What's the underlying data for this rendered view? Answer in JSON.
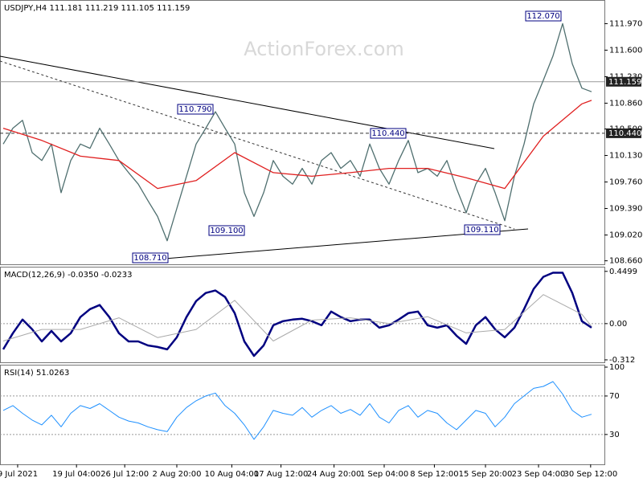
{
  "chart_data": [
    {
      "type": "line",
      "title": "USDJPY,H4  111.181 111.219 111.105 111.159",
      "watermark": "ActionForex.com",
      "xlim": [
        -0.33,
        62.33
      ],
      "ylim": [
        108.6,
        112.3
      ],
      "yticks": [
        {
          "value": 108.66,
          "label": "108.660"
        },
        {
          "value": 109.02,
          "label": "109.020"
        },
        {
          "value": 109.39,
          "label": "109.390"
        },
        {
          "value": 109.76,
          "label": "109.760"
        },
        {
          "value": 110.13,
          "label": "110.130"
        },
        {
          "value": 110.5,
          "label": "110.500"
        },
        {
          "value": 110.86,
          "label": "110.860"
        },
        {
          "value": 111.23,
          "label": "111.230"
        },
        {
          "value": 111.6,
          "label": "111.600"
        },
        {
          "value": 111.97,
          "label": "111.970"
        }
      ],
      "levels": [
        {
          "value": 111.159,
          "label": "111.159",
          "color": "#999999"
        },
        {
          "value": 110.44,
          "label": "110.440",
          "color": "#333333"
        }
      ],
      "annotations": [
        {
          "text": "112.070"
        },
        {
          "text": "110.790"
        },
        {
          "text": "110.440"
        },
        {
          "text": "109.100"
        },
        {
          "text": "108.710"
        },
        {
          "text": "109.110"
        }
      ],
      "series": [
        {
          "color": "#4f6f6f",
          "values": [
            110.29,
            110.51,
            110.62,
            110.17,
            110.06,
            110.29,
            109.61,
            110.06,
            110.29,
            110.23,
            110.51,
            110.29,
            110.06,
            109.89,
            109.73,
            109.5,
            109.28,
            108.94,
            109.39,
            109.84,
            110.29,
            110.51,
            110.74,
            110.51,
            110.29,
            109.61,
            109.28,
            109.61,
            110.06,
            109.84,
            109.73,
            109.95,
            109.73,
            110.06,
            110.17,
            109.95,
            110.06,
            109.84,
            110.29,
            109.95,
            109.73,
            110.06,
            110.34,
            109.89,
            109.95,
            109.84,
            110.06,
            109.67,
            109.33,
            109.73,
            109.95,
            109.61,
            109.22,
            109.84,
            110.29,
            110.85,
            111.18,
            111.52,
            111.97,
            111.41,
            111.07,
            111.02
          ]
        },
        {
          "color": "#e02020",
          "x": [
            0,
            4,
            8,
            12,
            16,
            20,
            24,
            28,
            32,
            36,
            40,
            44,
            48,
            52,
            56,
            60,
            61
          ],
          "values": [
            110.51,
            110.34,
            110.12,
            110.06,
            109.67,
            109.78,
            110.17,
            109.89,
            109.84,
            109.89,
            109.95,
            109.95,
            109.82,
            109.67,
            110.4,
            110.85,
            110.9
          ]
        }
      ]
    },
    {
      "type": "line",
      "title": "MACD(12,26,9) -0.0350 -0.0233",
      "xlim": [
        -0.33,
        62.33
      ],
      "ylim": [
        -0.34,
        0.49
      ],
      "yticks": [
        0.4499,
        {
          "value": 0,
          "label": "0.00"
        },
        -0.312
      ],
      "hlines": [
        0
      ],
      "series": [
        {
          "color": "#000080",
          "width": 2.5,
          "values": [
            -0.222,
            -0.083,
            0.035,
            -0.049,
            -0.153,
            -0.063,
            -0.153,
            -0.083,
            0.056,
            0.125,
            0.16,
            0.056,
            -0.083,
            -0.153,
            -0.153,
            -0.188,
            -0.201,
            -0.222,
            -0.118,
            0.056,
            0.194,
            0.264,
            0.285,
            0.229,
            0.09,
            -0.153,
            -0.278,
            -0.188,
            -0.014,
            0.021,
            0.035,
            0.042,
            0.021,
            -0.014,
            0.104,
            0.056,
            0.021,
            0.035,
            0.035,
            -0.035,
            -0.014,
            0.035,
            0.09,
            0.104,
            -0.014,
            -0.035,
            -0.014,
            -0.104,
            -0.174,
            -0.014,
            0.056,
            -0.049,
            -0.118,
            -0.035,
            0.125,
            0.299,
            0.403,
            0.438,
            0.438,
            0.264,
            0.021,
            -0.035
          ]
        },
        {
          "color": "#aaaaaa",
          "width": 1,
          "x": [
            0,
            4,
            8,
            12,
            16,
            20,
            24,
            28,
            32,
            36,
            40,
            44,
            48,
            52,
            56,
            60,
            61
          ],
          "values": [
            -0.15,
            -0.05,
            -0.05,
            0.05,
            -0.12,
            -0.05,
            0.2,
            -0.15,
            0.03,
            0.05,
            0.0,
            0.06,
            -0.08,
            -0.05,
            0.25,
            0.08,
            -0.0233
          ]
        }
      ]
    },
    {
      "type": "line",
      "title": "RSI(14) 51.0263",
      "xlim": [
        -0.33,
        62.33
      ],
      "ylim": [
        -1,
        102.5
      ],
      "yticks": [
        100,
        70,
        30
      ],
      "hlines": [
        30,
        70
      ],
      "xticks": [
        {
          "value": 1.5,
          "label": "9 Jul 2021"
        },
        {
          "value": 7.6,
          "label": "19 Jul 04:00"
        },
        {
          "value": 12.6,
          "label": "26 Jul 12:00"
        },
        {
          "value": 18,
          "label": "2 Aug 20:00"
        },
        {
          "value": 23.7,
          "label": "10 Aug 04:00"
        },
        {
          "value": 28.8,
          "label": "17 Aug 12:00"
        },
        {
          "value": 34.3,
          "label": "24 Aug 20:00"
        },
        {
          "value": 39.5,
          "label": "1 Sep 04:00"
        },
        {
          "value": 44.7,
          "label": "8 Sep 12:00"
        },
        {
          "value": 50,
          "label": "15 Sep 20:00"
        },
        {
          "value": 55.5,
          "label": "23 Sep 04:00"
        },
        {
          "value": 60.9,
          "label": "30 Sep 12:00"
        }
      ],
      "series": [
        {
          "color": "#1e90ff",
          "width": 1,
          "values": [
            55,
            60,
            52,
            45,
            40,
            50,
            38,
            52,
            60,
            57,
            62,
            55,
            48,
            44,
            42,
            38,
            35,
            33,
            48,
            58,
            65,
            70,
            73,
            60,
            52,
            40,
            25,
            38,
            55,
            52,
            50,
            58,
            48,
            55,
            60,
            52,
            56,
            50,
            62,
            48,
            42,
            55,
            60,
            48,
            55,
            52,
            42,
            35,
            45,
            55,
            52,
            38,
            48,
            62,
            70,
            78,
            80,
            85,
            72,
            55,
            48,
            51.0263
          ]
        }
      ]
    }
  ]
}
